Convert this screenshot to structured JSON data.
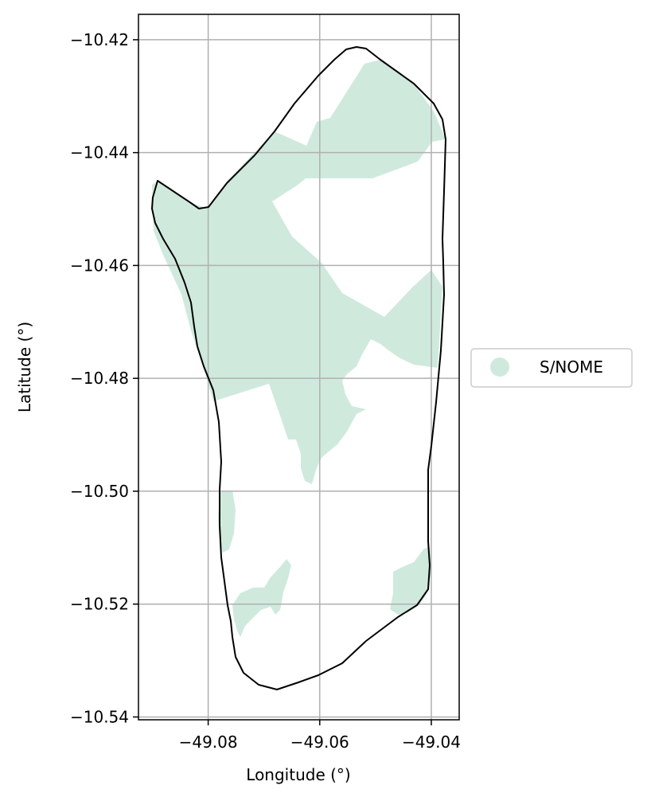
{
  "chart_data": {
    "type": "map",
    "title": "",
    "xlabel": "Longitude (°)",
    "ylabel": "Latitude (°)",
    "xlim": [
      -49.0925,
      -49.035
    ],
    "ylim": [
      -10.5405,
      -10.4155
    ],
    "xticks": [
      -49.08,
      -49.06,
      -49.04
    ],
    "yticks": [
      -10.42,
      -10.44,
      -10.46,
      -10.48,
      -10.5,
      -10.52,
      -10.54
    ],
    "xtick_labels": [
      "−49.08",
      "−49.06",
      "−49.04"
    ],
    "ytick_labels": [
      "−10.42",
      "−10.44",
      "−10.46",
      "−10.48",
      "−10.50",
      "−10.52",
      "−10.54"
    ],
    "grid": true,
    "legend_position": "right",
    "legend": [
      {
        "label": "S/NOME",
        "color": "#cfeadd"
      }
    ],
    "boundary_color": "#000000",
    "fill_color": "#cfeadd"
  }
}
